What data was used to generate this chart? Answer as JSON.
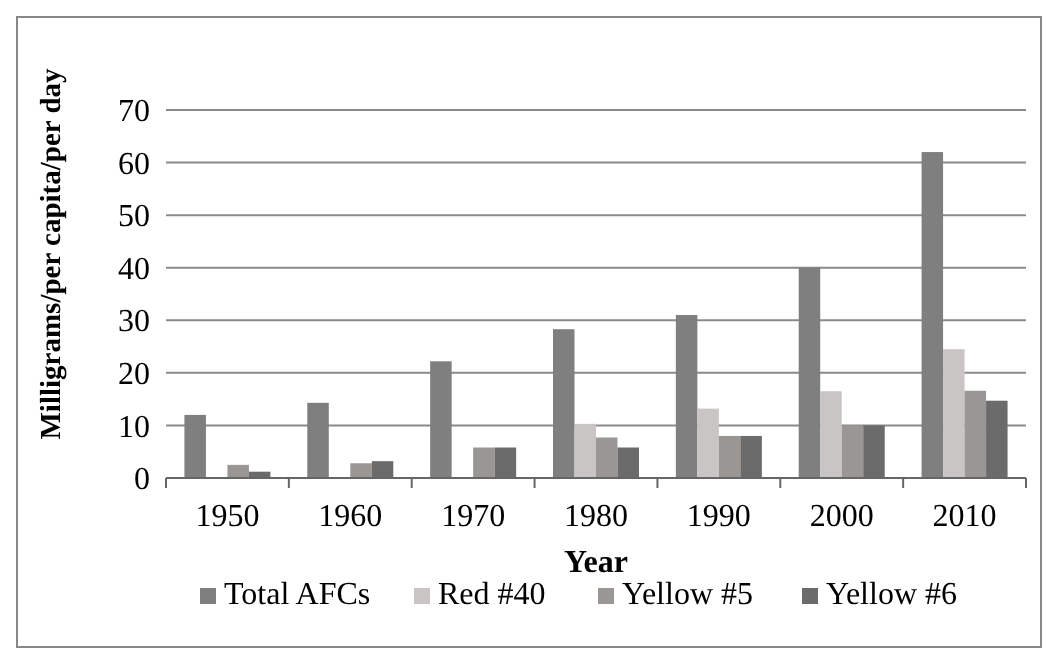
{
  "chart_data": {
    "type": "bar",
    "xlabel": "Year",
    "ylabel": "Milligrams/per capita/per day",
    "categories": [
      "1950",
      "1960",
      "1970",
      "1980",
      "1990",
      "2000",
      "2010"
    ],
    "series": [
      {
        "name": "Total AFCs",
        "color": "#7f7f7f",
        "values": [
          12,
          14.3,
          22.2,
          28.3,
          31,
          40,
          62
        ]
      },
      {
        "name": "Red #40",
        "color": "#c9c5c4",
        "values": [
          null,
          null,
          null,
          10.3,
          13.2,
          16.5,
          24.5
        ]
      },
      {
        "name": "Yellow #5",
        "color": "#999694",
        "values": [
          2.5,
          2.8,
          5.8,
          7.7,
          8,
          10,
          16.6
        ]
      },
      {
        "name": "Yellow #6",
        "color": "#6b6b6b",
        "values": [
          1.2,
          3.2,
          5.8,
          5.8,
          8,
          10,
          14.7
        ]
      }
    ],
    "ylim": [
      0,
      70
    ],
    "yticks": [
      0,
      10,
      20,
      30,
      40,
      50,
      60,
      70
    ],
    "grid": "y",
    "legend": "bottom"
  }
}
